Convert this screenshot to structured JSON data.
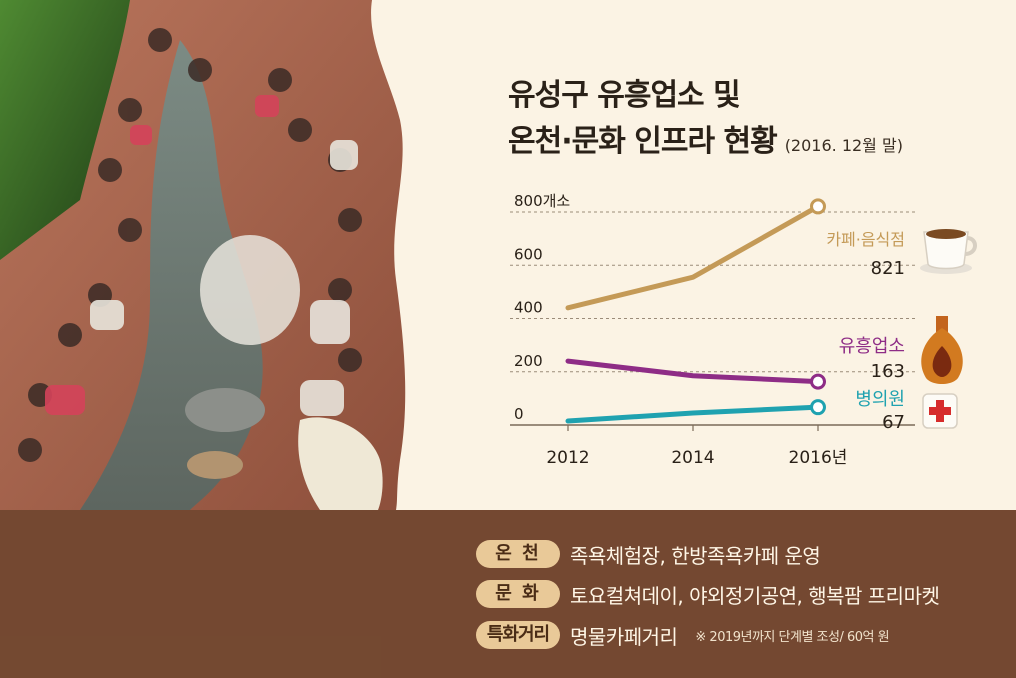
{
  "title": {
    "line1": "유성구 유흥업소 및",
    "line2": "온천·문화 인프라 현황",
    "date_note": "(2016. 12월 말)"
  },
  "chart_data": {
    "type": "line",
    "x": [
      "2012",
      "2014",
      "2016년"
    ],
    "ylim": [
      0,
      800
    ],
    "y_ticks": [
      "0",
      "200",
      "400",
      "600",
      "800개소"
    ],
    "y_tick_values": [
      0,
      200,
      400,
      600,
      800
    ],
    "grid": true,
    "series": [
      {
        "name": "카페·음식점",
        "values": [
          440,
          555,
          821
        ],
        "end_label": "821",
        "color": "#c49a57"
      },
      {
        "name": "유흥업소",
        "values": [
          240,
          185,
          163
        ],
        "end_label": "163",
        "color": "#8e2c86"
      },
      {
        "name": "병의원",
        "values": [
          15,
          45,
          67
        ],
        "end_label": "67",
        "color": "#1fa2b0"
      }
    ]
  },
  "icons": [
    "coffee-cup-icon",
    "liquor-bottle-icon",
    "first-aid-cross-icon"
  ],
  "info": [
    {
      "badge": "온 천",
      "text": "족욕체험장, 한방족욕카페 운영",
      "note": ""
    },
    {
      "badge": "문 화",
      "text": "토요컬쳐데이, 야외정기공연, 행복팜 프리마켓",
      "note": ""
    },
    {
      "badge": "특화거리",
      "text": "명물카페거리",
      "note": "※ 2019년까지 단계별 조성/ 60억 원"
    }
  ]
}
